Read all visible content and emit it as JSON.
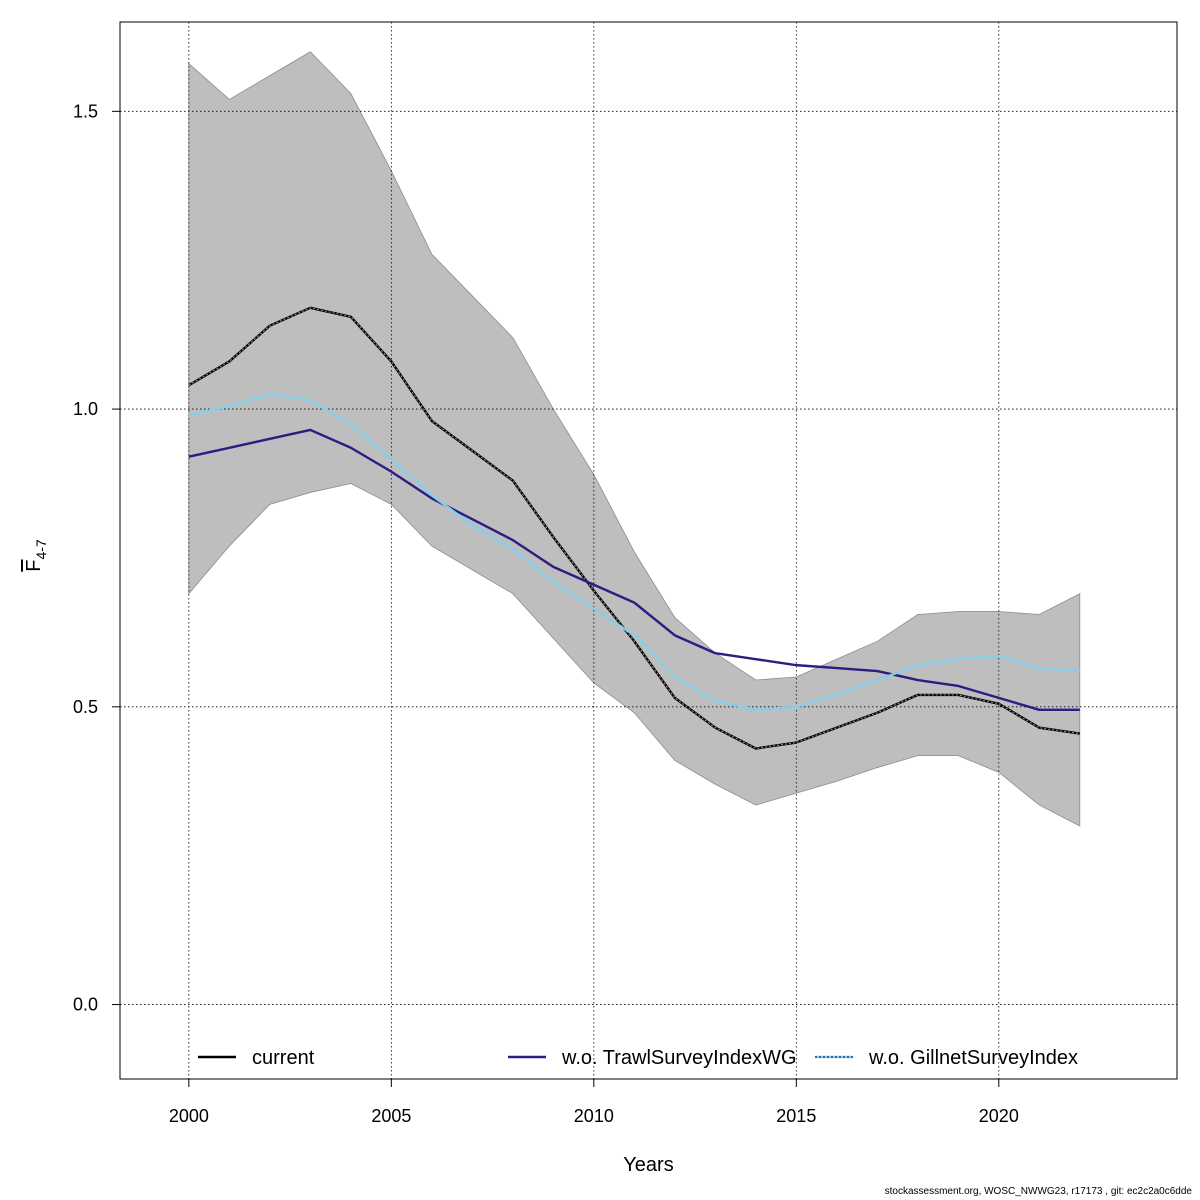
{
  "chart_data": {
    "type": "line",
    "title": "",
    "xlabel": "Years",
    "ylabel": {
      "main": "F",
      "sub": "4-7"
    },
    "xlim": [
      1998.3,
      2024.4
    ],
    "ylim": [
      -0.125,
      1.65
    ],
    "x_ticks": [
      2000,
      2005,
      2010,
      2015,
      2020
    ],
    "y_ticks": [
      0.0,
      0.5,
      1.0,
      1.5
    ],
    "y_tick_labels": [
      "0.0",
      "0.5",
      "1.0",
      "1.5"
    ],
    "grid": true,
    "legend_placement": "bottom",
    "x": [
      2000,
      2001,
      2002,
      2003,
      2004,
      2005,
      2006,
      2007,
      2008,
      2009,
      2010,
      2011,
      2012,
      2013,
      2014,
      2015,
      2016,
      2017,
      2018,
      2019,
      2020,
      2021,
      2022
    ],
    "band": {
      "color": "#bebebe",
      "upper": [
        1.58,
        1.52,
        1.56,
        1.6,
        1.53,
        1.4,
        1.26,
        1.19,
        1.12,
        1.0,
        0.89,
        0.76,
        0.65,
        0.59,
        0.545,
        0.55,
        0.58,
        0.61,
        0.655,
        0.66,
        0.66,
        0.655,
        0.69
      ],
      "lower": [
        0.69,
        0.77,
        0.84,
        0.86,
        0.875,
        0.84,
        0.77,
        0.73,
        0.69,
        0.615,
        0.54,
        0.49,
        0.41,
        0.37,
        0.335,
        0.355,
        0.375,
        0.398,
        0.418,
        0.418,
        0.39,
        0.335,
        0.3
      ]
    },
    "series": [
      {
        "name": "current",
        "color": "#000000",
        "dashed": true,
        "values": [
          1.04,
          1.08,
          1.14,
          1.17,
          1.155,
          1.08,
          0.98,
          0.93,
          0.88,
          0.785,
          0.695,
          0.61,
          0.515,
          0.465,
          0.43,
          0.44,
          0.465,
          0.49,
          0.52,
          0.52,
          0.505,
          0.465,
          0.455
        ]
      },
      {
        "name": "w.o. TrawlSurveyIndexWG",
        "color": "#2b1d82",
        "dashed": false,
        "values": [
          0.92,
          0.935,
          0.95,
          0.965,
          0.935,
          0.895,
          0.85,
          0.815,
          0.78,
          0.735,
          0.705,
          0.675,
          0.62,
          0.59,
          0.58,
          0.57,
          0.565,
          0.56,
          0.545,
          0.535,
          0.515,
          0.495,
          0.495
        ]
      },
      {
        "name": "w.o. GillnetSurveyIndex",
        "color": "#87ceeb",
        "dashed": false,
        "values": [
          0.99,
          1.005,
          1.025,
          1.015,
          0.975,
          0.915,
          0.855,
          0.805,
          0.765,
          0.71,
          0.665,
          0.62,
          0.55,
          0.51,
          0.495,
          0.5,
          0.52,
          0.545,
          0.57,
          0.58,
          0.585,
          0.565,
          0.56
        ]
      }
    ]
  },
  "footer": "stockassessment.org, WOSC_NWWG23, r17173 , git: ec2c2a0c6dde"
}
